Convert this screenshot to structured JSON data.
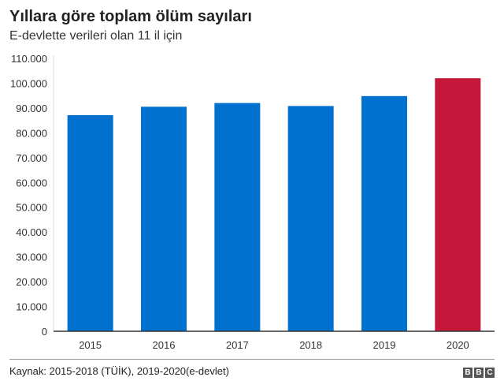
{
  "chart_data": {
    "type": "bar",
    "title": "Yıllara göre toplam ölüm sayıları",
    "subtitle": "E-devlette verileri olan 11 il için",
    "categories": [
      "2015",
      "2016",
      "2017",
      "2018",
      "2019",
      "2020"
    ],
    "values": [
      87100,
      90500,
      92000,
      90800,
      94800,
      102000
    ],
    "colors": [
      "#0071ce",
      "#0071ce",
      "#0071ce",
      "#0071ce",
      "#0071ce",
      "#c5173a"
    ],
    "ylim": [
      0,
      110000
    ],
    "yticks": [
      0,
      10000,
      20000,
      30000,
      40000,
      50000,
      60000,
      70000,
      80000,
      90000,
      100000,
      110000
    ],
    "ytick_labels": [
      "0",
      "10.000",
      "20.000",
      "30.000",
      "40.000",
      "50.000",
      "60.000",
      "70.000",
      "80.000",
      "90.000",
      "100.000",
      "110.000"
    ],
    "xlabel": "",
    "ylabel": "",
    "grid": false
  },
  "source": "Kaynak: 2015-2018 (TÜİK), 2019-2020(e-devlet)",
  "logo": [
    "B",
    "B",
    "C"
  ]
}
